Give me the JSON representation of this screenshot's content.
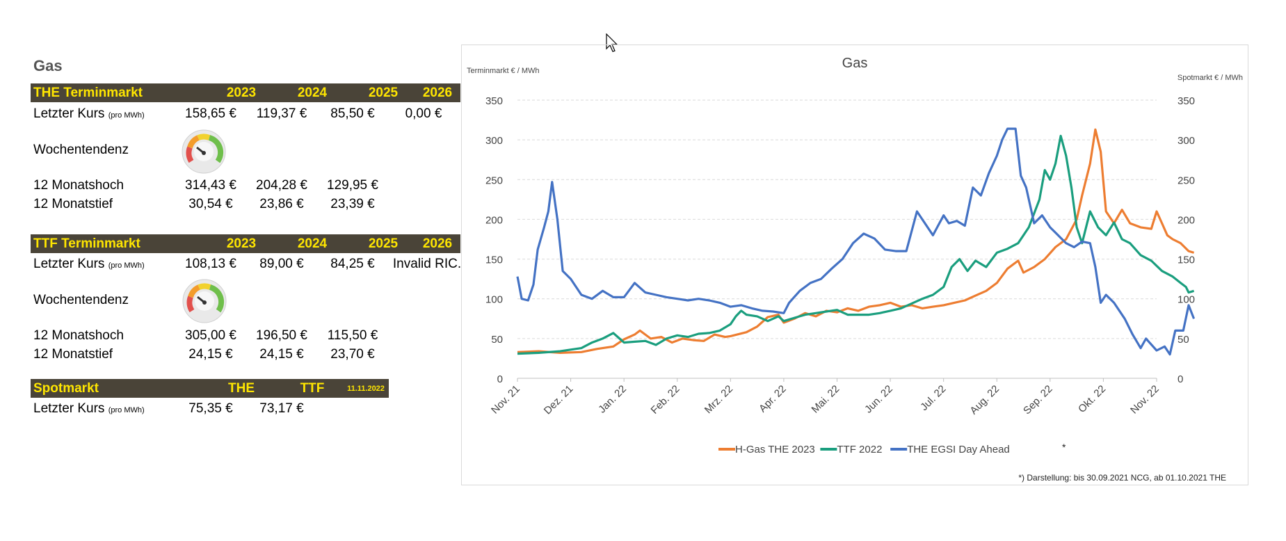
{
  "page": {
    "heading": "Gas"
  },
  "the_table": {
    "header": [
      "THE Terminmarkt",
      "2023",
      "2024",
      "2025",
      "2026"
    ],
    "last_price_label": "Letzter Kurs",
    "per_unit": "(pro MWh)",
    "last_price": [
      "158,65 €",
      "119,37 €",
      "85,50 €",
      "0,00 €"
    ],
    "trend_label": "Wochentendenz",
    "high_label": "12 Monatshoch",
    "high": [
      "314,43 €",
      "204,28 €",
      "129,95 €"
    ],
    "low_label": "12 Monatstief",
    "low": [
      "30,54 €",
      "23,86 €",
      "23,39 €"
    ]
  },
  "ttf_table": {
    "header": [
      "TTF Terminmarkt",
      "2023",
      "2024",
      "2025",
      "2026"
    ],
    "last_price_label": "Letzter Kurs",
    "per_unit": "(pro MWh)",
    "last_price": [
      "108,13 €",
      "89,00 €",
      "84,25 €",
      "Invalid RIC."
    ],
    "trend_label": "Wochentendenz",
    "high_label": "12 Monatshoch",
    "high": [
      "305,00 €",
      "196,50 €",
      "115,50 €"
    ],
    "low_label": "12 Monatstief",
    "low": [
      "24,15 €",
      "24,15 €",
      "23,70 €"
    ]
  },
  "spot_table": {
    "header": [
      "Spotmarkt",
      "THE",
      "TTF"
    ],
    "date": "11.11.2022",
    "last_price_label": "Letzter Kurs",
    "per_unit": "(pro MWh)",
    "last_price": [
      "75,35 €",
      "73,17 €"
    ]
  },
  "colors": {
    "header_bg": "#4a4438",
    "header_text": "#ffe600"
  },
  "chart_data": {
    "type": "line",
    "title": "Gas",
    "ylabel_left": "Terminmarkt € / MWh",
    "ylabel_right": "Spotmarkt € / MWh",
    "ylim": [
      0,
      350
    ],
    "yticks": [
      0,
      50,
      100,
      150,
      200,
      250,
      300,
      350
    ],
    "categories": [
      "Nov. 21",
      "Dez. 21",
      "Jan. 22",
      "Feb. 22",
      "Mrz. 22",
      "Apr. 22",
      "Mai. 22",
      "Jun. 22",
      "Jul. 22",
      "Aug. 22",
      "Sep. 22",
      "Okt. 22",
      "Nov. 22"
    ],
    "footnote_marker": "*",
    "footnote": "*) Darstellung: bis 30.09.2021 NCG, ab 01.10.2021 THE",
    "series": [
      {
        "name": "H-Gas THE 2023",
        "color": "#ed7d31",
        "points": [
          [
            0,
            33
          ],
          [
            0.4,
            34
          ],
          [
            0.8,
            32
          ],
          [
            1.2,
            33
          ],
          [
            1.5,
            37
          ],
          [
            1.8,
            40
          ],
          [
            2.0,
            49
          ],
          [
            2.2,
            55
          ],
          [
            2.3,
            60
          ],
          [
            2.5,
            50
          ],
          [
            2.7,
            52
          ],
          [
            2.9,
            45
          ],
          [
            3.1,
            50
          ],
          [
            3.3,
            48
          ],
          [
            3.5,
            47
          ],
          [
            3.7,
            55
          ],
          [
            3.9,
            52
          ],
          [
            4.0,
            53
          ],
          [
            4.3,
            58
          ],
          [
            4.5,
            65
          ],
          [
            4.7,
            77
          ],
          [
            4.9,
            80
          ],
          [
            5.0,
            70
          ],
          [
            5.2,
            75
          ],
          [
            5.4,
            82
          ],
          [
            5.6,
            78
          ],
          [
            5.8,
            85
          ],
          [
            6.0,
            83
          ],
          [
            6.2,
            88
          ],
          [
            6.4,
            85
          ],
          [
            6.6,
            90
          ],
          [
            6.8,
            92
          ],
          [
            7.0,
            95
          ],
          [
            7.2,
            90
          ],
          [
            7.4,
            92
          ],
          [
            7.6,
            88
          ],
          [
            7.8,
            90
          ],
          [
            8.0,
            92
          ],
          [
            8.2,
            95
          ],
          [
            8.4,
            98
          ],
          [
            8.6,
            104
          ],
          [
            8.8,
            110
          ],
          [
            9.0,
            120
          ],
          [
            9.2,
            138
          ],
          [
            9.4,
            148
          ],
          [
            9.5,
            133
          ],
          [
            9.7,
            140
          ],
          [
            9.9,
            150
          ],
          [
            10.1,
            165
          ],
          [
            10.3,
            175
          ],
          [
            10.5,
            200
          ],
          [
            10.6,
            230
          ],
          [
            10.75,
            270
          ],
          [
            10.85,
            313
          ],
          [
            10.95,
            285
          ],
          [
            11.05,
            210
          ],
          [
            11.2,
            195
          ],
          [
            11.35,
            212
          ],
          [
            11.5,
            195
          ],
          [
            11.7,
            190
          ],
          [
            11.9,
            188
          ],
          [
            12.0,
            210
          ],
          [
            12.1,
            195
          ],
          [
            12.2,
            180
          ],
          [
            12.3,
            175
          ],
          [
            12.45,
            170
          ],
          [
            12.6,
            160
          ],
          [
            12.7,
            158
          ]
        ]
      },
      {
        "name": "TTF 2022",
        "color": "#1a9e7e",
        "points": [
          [
            0,
            31
          ],
          [
            0.4,
            32
          ],
          [
            0.8,
            34
          ],
          [
            1.2,
            38
          ],
          [
            1.4,
            45
          ],
          [
            1.6,
            50
          ],
          [
            1.8,
            57
          ],
          [
            2.0,
            45
          ],
          [
            2.2,
            46
          ],
          [
            2.4,
            47
          ],
          [
            2.6,
            42
          ],
          [
            2.8,
            50
          ],
          [
            3.0,
            54
          ],
          [
            3.2,
            52
          ],
          [
            3.4,
            56
          ],
          [
            3.6,
            57
          ],
          [
            3.8,
            60
          ],
          [
            4.0,
            68
          ],
          [
            4.1,
            78
          ],
          [
            4.2,
            85
          ],
          [
            4.3,
            80
          ],
          [
            4.5,
            78
          ],
          [
            4.7,
            72
          ],
          [
            4.9,
            78
          ],
          [
            5.0,
            72
          ],
          [
            5.2,
            76
          ],
          [
            5.4,
            80
          ],
          [
            5.6,
            82
          ],
          [
            5.8,
            84
          ],
          [
            6.0,
            86
          ],
          [
            6.2,
            80
          ],
          [
            6.4,
            80
          ],
          [
            6.6,
            80
          ],
          [
            6.8,
            82
          ],
          [
            7.0,
            85
          ],
          [
            7.2,
            88
          ],
          [
            7.4,
            94
          ],
          [
            7.6,
            100
          ],
          [
            7.8,
            105
          ],
          [
            8.0,
            115
          ],
          [
            8.15,
            140
          ],
          [
            8.3,
            150
          ],
          [
            8.45,
            135
          ],
          [
            8.6,
            148
          ],
          [
            8.8,
            140
          ],
          [
            9.0,
            158
          ],
          [
            9.2,
            163
          ],
          [
            9.4,
            170
          ],
          [
            9.6,
            190
          ],
          [
            9.8,
            225
          ],
          [
            9.9,
            262
          ],
          [
            10.0,
            250
          ],
          [
            10.1,
            270
          ],
          [
            10.2,
            305
          ],
          [
            10.3,
            280
          ],
          [
            10.4,
            240
          ],
          [
            10.5,
            190
          ],
          [
            10.6,
            170
          ],
          [
            10.75,
            210
          ],
          [
            10.9,
            190
          ],
          [
            11.05,
            180
          ],
          [
            11.2,
            196
          ],
          [
            11.35,
            175
          ],
          [
            11.5,
            170
          ],
          [
            11.7,
            155
          ],
          [
            11.9,
            148
          ],
          [
            12.1,
            135
          ],
          [
            12.3,
            128
          ],
          [
            12.45,
            120
          ],
          [
            12.55,
            115
          ],
          [
            12.6,
            108
          ],
          [
            12.7,
            110
          ]
        ]
      },
      {
        "name": "THE EGSI Day Ahead",
        "color": "#4472c4",
        "points": [
          [
            0,
            128
          ],
          [
            0.08,
            100
          ],
          [
            0.2,
            98
          ],
          [
            0.3,
            118
          ],
          [
            0.38,
            162
          ],
          [
            0.5,
            190
          ],
          [
            0.58,
            210
          ],
          [
            0.65,
            247
          ],
          [
            0.75,
            200
          ],
          [
            0.85,
            135
          ],
          [
            1.0,
            125
          ],
          [
            1.2,
            105
          ],
          [
            1.4,
            100
          ],
          [
            1.6,
            110
          ],
          [
            1.8,
            102
          ],
          [
            2.0,
            102
          ],
          [
            2.2,
            120
          ],
          [
            2.4,
            108
          ],
          [
            2.6,
            105
          ],
          [
            2.8,
            102
          ],
          [
            3.0,
            100
          ],
          [
            3.2,
            98
          ],
          [
            3.4,
            100
          ],
          [
            3.6,
            98
          ],
          [
            3.8,
            95
          ],
          [
            4.0,
            90
          ],
          [
            4.2,
            92
          ],
          [
            4.4,
            88
          ],
          [
            4.6,
            85
          ],
          [
            4.8,
            84
          ],
          [
            5.0,
            82
          ],
          [
            5.1,
            95
          ],
          [
            5.3,
            110
          ],
          [
            5.5,
            120
          ],
          [
            5.7,
            125
          ],
          [
            5.9,
            138
          ],
          [
            6.1,
            150
          ],
          [
            6.3,
            170
          ],
          [
            6.5,
            182
          ],
          [
            6.7,
            176
          ],
          [
            6.9,
            162
          ],
          [
            7.1,
            160
          ],
          [
            7.3,
            160
          ],
          [
            7.5,
            210
          ],
          [
            7.6,
            200
          ],
          [
            7.8,
            180
          ],
          [
            8.0,
            205
          ],
          [
            8.1,
            195
          ],
          [
            8.25,
            198
          ],
          [
            8.4,
            192
          ],
          [
            8.55,
            240
          ],
          [
            8.7,
            230
          ],
          [
            8.85,
            258
          ],
          [
            9.0,
            280
          ],
          [
            9.1,
            300
          ],
          [
            9.2,
            314
          ],
          [
            9.35,
            314
          ],
          [
            9.45,
            255
          ],
          [
            9.55,
            240
          ],
          [
            9.7,
            195
          ],
          [
            9.85,
            205
          ],
          [
            10.0,
            190
          ],
          [
            10.15,
            180
          ],
          [
            10.3,
            170
          ],
          [
            10.45,
            165
          ],
          [
            10.6,
            172
          ],
          [
            10.75,
            170
          ],
          [
            10.85,
            140
          ],
          [
            10.95,
            95
          ],
          [
            11.05,
            105
          ],
          [
            11.2,
            95
          ],
          [
            11.4,
            75
          ],
          [
            11.55,
            55
          ],
          [
            11.7,
            38
          ],
          [
            11.8,
            50
          ],
          [
            12.0,
            35
          ],
          [
            12.15,
            40
          ],
          [
            12.25,
            30
          ],
          [
            12.35,
            60
          ],
          [
            12.5,
            60
          ],
          [
            12.6,
            92
          ],
          [
            12.7,
            75
          ]
        ]
      }
    ]
  }
}
